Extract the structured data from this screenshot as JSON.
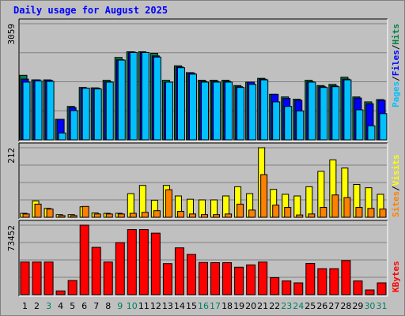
{
  "chart_data": {
    "type": "bar",
    "title": "Daily usage for August 2025",
    "categories": [
      "1",
      "2",
      "3",
      "4",
      "5",
      "6",
      "7",
      "8",
      "9",
      "10",
      "11",
      "12",
      "13",
      "14",
      "15",
      "16",
      "17",
      "18",
      "19",
      "20",
      "21",
      "22",
      "23",
      "24",
      "25",
      "26",
      "27",
      "28",
      "29",
      "30",
      "31"
    ],
    "weekend_days": [
      "3",
      "9",
      "10",
      "16",
      "17",
      "23",
      "24",
      "30",
      "31"
    ],
    "panels": [
      {
        "id": "hits-files-pages",
        "max_label": "3059",
        "ylim": [
          0,
          3059
        ],
        "series": [
          {
            "name": "Hits",
            "color": "#008040",
            "values": [
              1700,
              1580,
              1580,
              540,
              880,
              1380,
              1370,
              1570,
              2170,
              2320,
              2320,
              2280,
              1570,
              1950,
              1770,
              1570,
              1570,
              1570,
              1430,
              1520,
              1620,
              1200,
              1130,
              1070,
              1570,
              1430,
              1460,
              1650,
              1130,
              1000,
              1060
            ]
          },
          {
            "name": "Files",
            "color": "#0000ff",
            "values": [
              1600,
              1580,
              1570,
              540,
              850,
              1360,
              1360,
              1530,
              2110,
              2310,
              2300,
              2210,
              1520,
              1920,
              1760,
              1540,
              1540,
              1540,
              1400,
              1520,
              1600,
              1200,
              1090,
              1040,
              1530,
              1400,
              1420,
              1600,
              1100,
              950,
              1040
            ]
          },
          {
            "name": "Pages",
            "color": "#00c0ff",
            "values": [
              1520,
              1550,
              1540,
              180,
              770,
              1360,
              1340,
              1520,
              2100,
              2300,
              2300,
              2180,
              1520,
              1900,
              1730,
              1520,
              1520,
              1520,
              1380,
              1460,
              1580,
              1000,
              880,
              760,
              1520,
              1380,
              1400,
              1580,
              790,
              370,
              690
            ]
          }
        ]
      },
      {
        "id": "visits-sites",
        "max_label": "212",
        "ylim": [
          0,
          212
        ],
        "series": [
          {
            "name": "Visits",
            "color": "#ffff00",
            "values": [
              12,
              50,
              27,
              8,
              8,
              32,
              13,
              12,
              12,
              72,
              97,
              52,
              97,
              65,
              55,
              53,
              53,
              65,
              93,
              72,
              212,
              85,
              70,
              65,
              93,
              140,
              175,
              150,
              100,
              90,
              70
            ]
          },
          {
            "name": "Sites",
            "color": "#ff8000",
            "values": [
              10,
              40,
              25,
              5,
              5,
              33,
              10,
              10,
              10,
              12,
              15,
              20,
              84,
              18,
              10,
              8,
              8,
              10,
              40,
              22,
              130,
              37,
              30,
              7,
              10,
              30,
              68,
              60,
              30,
              27,
              25
            ]
          }
        ]
      },
      {
        "id": "kbytes",
        "max_label": "73452",
        "ylim": [
          0,
          73452
        ],
        "series": [
          {
            "name": "KBytes",
            "color": "#ff0000",
            "values": [
              34500,
              34500,
              34500,
              4000,
              15000,
              73452,
              50000,
              34500,
              55000,
              68800,
              68800,
              65000,
              32800,
              49500,
              42500,
              34000,
              33800,
              33800,
              29000,
              31500,
              34500,
              18000,
              14500,
              12500,
              33000,
              27500,
              27500,
              36000,
              14500,
              5000,
              12500
            ]
          }
        ]
      }
    ],
    "right_labels": {
      "panel1": [
        {
          "text": "Pages",
          "color": "#00c0ff"
        },
        {
          "text": "/",
          "color": "#000000"
        },
        {
          "text": "Files",
          "color": "#0000ff"
        },
        {
          "text": "/",
          "color": "#000000"
        },
        {
          "text": "Hits",
          "color": "#008040"
        }
      ],
      "panel2": [
        {
          "text": "Sites",
          "color": "#ff8000"
        },
        {
          "text": "/",
          "color": "#000000"
        },
        {
          "text": "Visits",
          "color": "#ffff00"
        }
      ],
      "panel3": [
        {
          "text": "KBytes",
          "color": "#ff0000"
        }
      ]
    },
    "colors": {
      "background": "#c0c0c0",
      "panel_bg": "#c0c0c0",
      "grid": "#808080",
      "title": "#0000ff",
      "weekday_label": "#000000",
      "weekend_label": "#00805c"
    },
    "grid": true
  }
}
